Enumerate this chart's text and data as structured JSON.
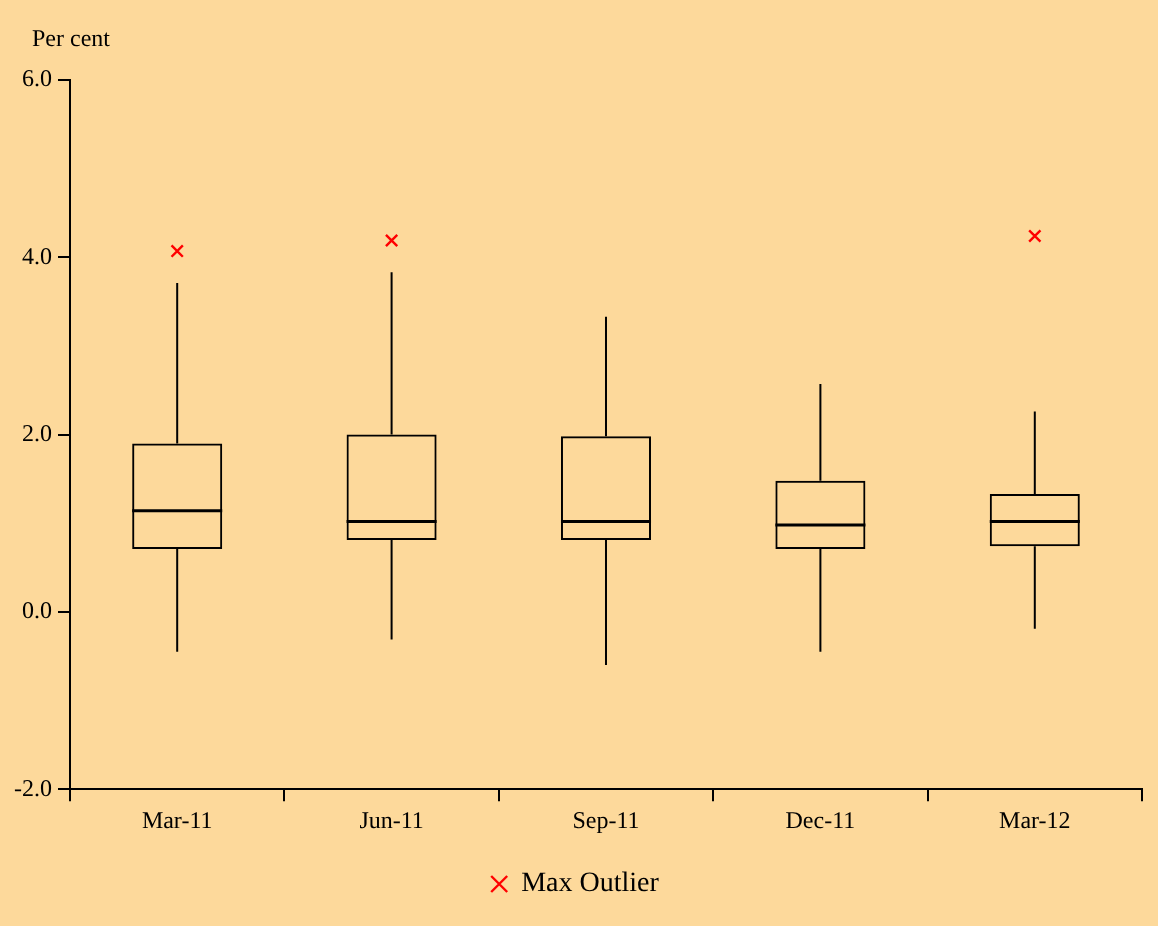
{
  "chart_data": {
    "type": "box",
    "ylabel": "Per cent",
    "categories": [
      "Mar-11",
      "Jun-11",
      "Sep-11",
      "Dec-11",
      "Mar-12"
    ],
    "ylim": [
      -2,
      6
    ],
    "yticks": [
      {
        "value": -2,
        "label": "-2.0"
      },
      {
        "value": 0,
        "label": "0.0"
      },
      {
        "value": 2,
        "label": "2.0"
      },
      {
        "value": 4,
        "label": "4.0"
      },
      {
        "value": 6,
        "label": "6.0"
      }
    ],
    "grid": false,
    "legend": "bottom",
    "marker": "cross",
    "series": [
      {
        "color": "#000000",
        "boxes": [
          {
            "low": -0.45,
            "q1": 0.71,
            "median": 1.14,
            "q3": 1.9,
            "high": 3.71
          },
          {
            "low": -0.31,
            "q1": 0.81,
            "median": 1.02,
            "q3": 2.0,
            "high": 3.83
          },
          {
            "low": -0.6,
            "q1": 0.81,
            "median": 1.02,
            "q3": 1.98,
            "high": 3.33
          },
          {
            "low": -0.45,
            "q1": 0.71,
            "median": 0.98,
            "q3": 1.48,
            "high": 2.57
          },
          {
            "low": -0.19,
            "q1": 0.74,
            "median": 1.02,
            "q3": 1.33,
            "high": 2.26
          }
        ]
      },
      {
        "type": "scatter",
        "name": "Max Outlier",
        "color": "#ff0000",
        "x": [
          "Mar-11",
          "Jun-11",
          "Mar-12"
        ],
        "values": [
          4.07,
          4.19,
          4.24
        ]
      }
    ]
  }
}
